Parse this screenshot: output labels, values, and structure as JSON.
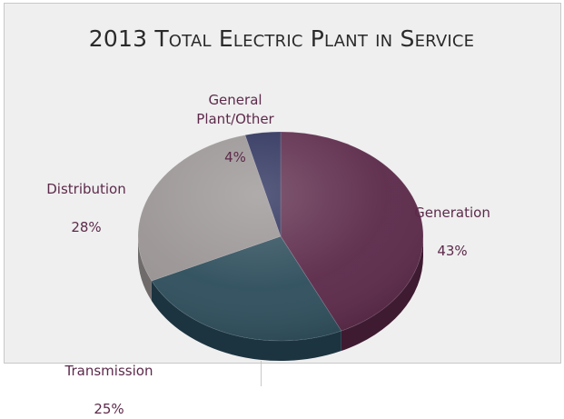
{
  "chart_data": {
    "type": "pie",
    "title": "2013 Total Electric Plant in Service",
    "slices": [
      {
        "label": "Generation",
        "value": 43,
        "value_label": "43%",
        "color": "#5c2a4a",
        "side_color": "#3e1b31"
      },
      {
        "label": "Transmission",
        "value": 25,
        "value_label": "25%",
        "color": "#2e4e5c",
        "side_color": "#1c3440"
      },
      {
        "label": "Distribution",
        "value": 28,
        "value_label": "28%",
        "color": "#9a9494",
        "side_color": "#6f6b6b"
      },
      {
        "label": "General\nPlant/Other",
        "value": 4,
        "value_label": "4%",
        "color": "#2a2f5a",
        "side_color": "#1a1d3c"
      }
    ],
    "label_color": "#5c2a4a",
    "start": "12 o'clock, clockwise",
    "style": "3D pie"
  }
}
